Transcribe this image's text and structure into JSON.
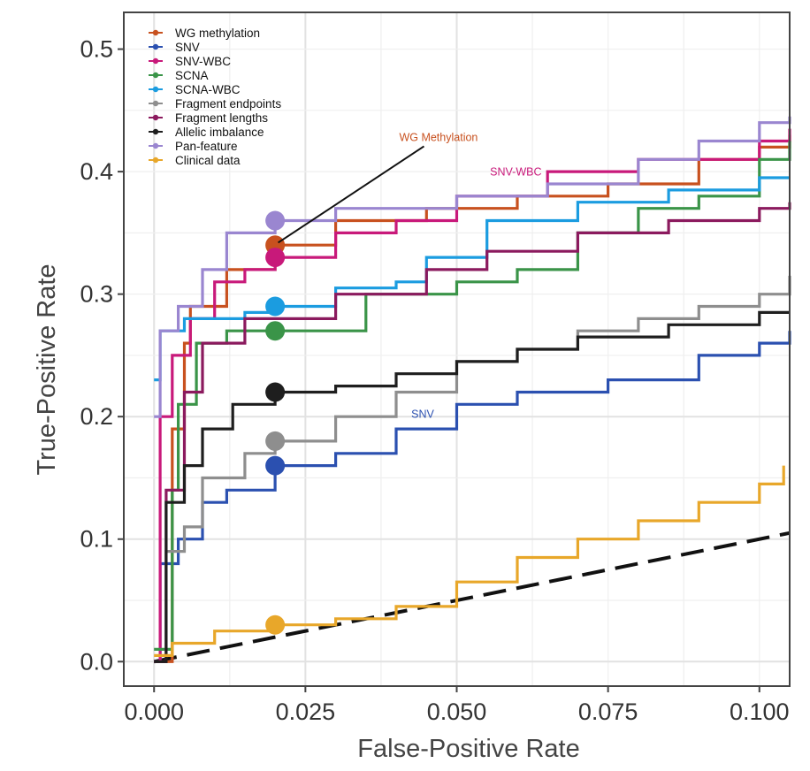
{
  "chart_data": {
    "type": "line",
    "title": "",
    "xlabel": "False-Positive Rate",
    "ylabel": "True-Positive Rate",
    "xlim": [
      -0.005,
      0.105
    ],
    "ylim": [
      -0.02,
      0.53
    ],
    "xticks": [
      0.0,
      0.025,
      0.05,
      0.075,
      0.1
    ],
    "xtick_labels": [
      "0.000",
      "0.025",
      "0.050",
      "0.075",
      "0.100"
    ],
    "yticks": [
      0.0,
      0.1,
      0.2,
      0.3,
      0.4,
      0.5
    ],
    "ytick_labels": [
      "0.0",
      "0.1",
      "0.2",
      "0.3",
      "0.4",
      "0.5"
    ],
    "grid": true,
    "legend_position": "top-left",
    "reference_line": {
      "style": "dashed",
      "color": "#111111",
      "x": [
        0.0,
        0.105
      ],
      "y": [
        0.0,
        0.105
      ]
    },
    "series": [
      {
        "name": "WG methylation",
        "color": "#c8511f",
        "step": true,
        "x": [
          0,
          0.003,
          0.005,
          0.006,
          0.012,
          0.02,
          0.03,
          0.045,
          0.06,
          0.075,
          0.09,
          0.1,
          0.105
        ],
        "y": [
          0,
          0.19,
          0.26,
          0.29,
          0.32,
          0.34,
          0.36,
          0.37,
          0.38,
          0.39,
          0.41,
          0.42,
          0.43
        ],
        "marker": {
          "x": 0.02,
          "y": 0.34
        }
      },
      {
        "name": "SNV",
        "color": "#2b50b0",
        "step": true,
        "x": [
          0,
          0.001,
          0.004,
          0.008,
          0.012,
          0.02,
          0.03,
          0.04,
          0.05,
          0.06,
          0.075,
          0.09,
          0.1,
          0.105
        ],
        "y": [
          0,
          0.08,
          0.1,
          0.13,
          0.14,
          0.16,
          0.17,
          0.19,
          0.21,
          0.22,
          0.23,
          0.25,
          0.26,
          0.27
        ],
        "marker": {
          "x": 0.02,
          "y": 0.16
        }
      },
      {
        "name": "SNV-WBC",
        "color": "#c8197a",
        "step": true,
        "x": [
          0,
          0.001,
          0.003,
          0.006,
          0.01,
          0.015,
          0.02,
          0.03,
          0.04,
          0.05,
          0.065,
          0.08,
          0.1,
          0.105
        ],
        "y": [
          0,
          0.2,
          0.25,
          0.28,
          0.31,
          0.32,
          0.33,
          0.35,
          0.36,
          0.38,
          0.4,
          0.41,
          0.425,
          0.435
        ],
        "marker": {
          "x": 0.02,
          "y": 0.33
        }
      },
      {
        "name": "SCNA",
        "color": "#3a9448",
        "step": true,
        "x": [
          0,
          0.003,
          0.004,
          0.007,
          0.012,
          0.02,
          0.035,
          0.05,
          0.06,
          0.07,
          0.08,
          0.09,
          0.1,
          0.105
        ],
        "y": [
          0.01,
          0.14,
          0.21,
          0.26,
          0.27,
          0.27,
          0.3,
          0.31,
          0.32,
          0.35,
          0.37,
          0.38,
          0.41,
          0.425
        ],
        "marker": {
          "x": 0.02,
          "y": 0.27
        }
      },
      {
        "name": "SCNA-WBC",
        "color": "#1b9ce0",
        "step": true,
        "x": [
          0,
          0.001,
          0.005,
          0.01,
          0.015,
          0.02,
          0.03,
          0.04,
          0.045,
          0.055,
          0.07,
          0.085,
          0.1,
          0.105
        ],
        "y": [
          0.23,
          0.27,
          0.28,
          0.28,
          0.285,
          0.29,
          0.305,
          0.31,
          0.33,
          0.36,
          0.375,
          0.385,
          0.395,
          0.395
        ],
        "marker": {
          "x": 0.02,
          "y": 0.29
        }
      },
      {
        "name": "Fragment endpoints",
        "color": "#8e8e8e",
        "step": true,
        "x": [
          0,
          0.002,
          0.005,
          0.008,
          0.015,
          0.02,
          0.03,
          0.04,
          0.05,
          0.06,
          0.07,
          0.08,
          0.09,
          0.1,
          0.105
        ],
        "y": [
          0,
          0.09,
          0.11,
          0.15,
          0.17,
          0.18,
          0.2,
          0.22,
          0.245,
          0.255,
          0.27,
          0.28,
          0.29,
          0.3,
          0.315
        ],
        "marker": {
          "x": 0.02,
          "y": 0.18
        }
      },
      {
        "name": "Fragment lengths",
        "color": "#8b1a5e",
        "step": true,
        "x": [
          0,
          0.002,
          0.005,
          0.008,
          0.015,
          0.02,
          0.03,
          0.045,
          0.055,
          0.07,
          0.085,
          0.1,
          0.105
        ],
        "y": [
          0,
          0.14,
          0.22,
          0.26,
          0.28,
          0.28,
          0.3,
          0.32,
          0.335,
          0.35,
          0.36,
          0.37,
          0.375
        ],
        "marker": null
      },
      {
        "name": "Allelic imbalance",
        "color": "#1e1e1e",
        "step": true,
        "x": [
          0,
          0.002,
          0.005,
          0.008,
          0.013,
          0.02,
          0.03,
          0.04,
          0.05,
          0.06,
          0.07,
          0.085,
          0.1,
          0.105
        ],
        "y": [
          0,
          0.13,
          0.16,
          0.19,
          0.21,
          0.22,
          0.225,
          0.235,
          0.245,
          0.255,
          0.265,
          0.275,
          0.285,
          0.285
        ],
        "marker": {
          "x": 0.02,
          "y": 0.22
        }
      },
      {
        "name": "Pan-feature",
        "color": "#9a86d0",
        "step": true,
        "x": [
          0,
          0.001,
          0.004,
          0.008,
          0.012,
          0.02,
          0.03,
          0.05,
          0.065,
          0.08,
          0.09,
          0.1,
          0.105
        ],
        "y": [
          0.2,
          0.27,
          0.29,
          0.32,
          0.35,
          0.36,
          0.37,
          0.38,
          0.39,
          0.41,
          0.425,
          0.44,
          0.445
        ],
        "marker": {
          "x": 0.02,
          "y": 0.36
        }
      },
      {
        "name": "Clinical data",
        "color": "#e8a72a",
        "step": true,
        "x": [
          0,
          0.003,
          0.01,
          0.02,
          0.03,
          0.04,
          0.05,
          0.06,
          0.07,
          0.08,
          0.09,
          0.1,
          0.104
        ],
        "y": [
          0.005,
          0.015,
          0.025,
          0.03,
          0.035,
          0.045,
          0.065,
          0.085,
          0.1,
          0.115,
          0.13,
          0.145,
          0.16
        ],
        "marker": {
          "x": 0.02,
          "y": 0.03
        }
      }
    ],
    "annotations": [
      {
        "text": "WG Methylation",
        "color": "#c8511f",
        "x": 0.0405,
        "y": 0.425,
        "arrow_to": {
          "x": 0.0205,
          "y": 0.342
        }
      },
      {
        "text": "SNV-WBC",
        "color": "#c8197a",
        "x": 0.0555,
        "y": 0.397,
        "arrow_to": null
      },
      {
        "text": "SNV",
        "color": "#2b50b0",
        "x": 0.0425,
        "y": 0.199,
        "arrow_to": null
      }
    ]
  }
}
